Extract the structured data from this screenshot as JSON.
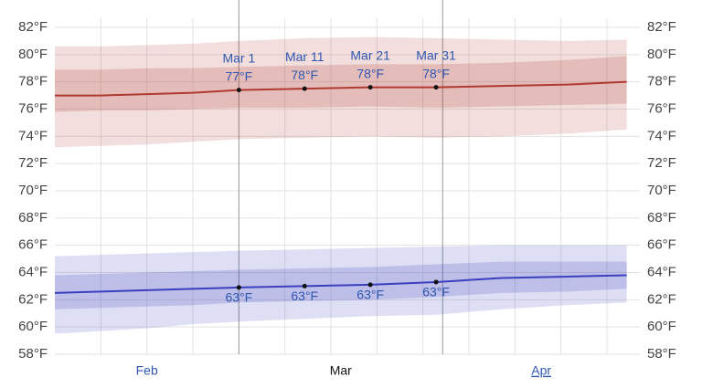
{
  "chart_data": {
    "type": "line",
    "months": [
      {
        "name": "Feb",
        "days": 28
      },
      {
        "name": "Mar",
        "days": 31
      },
      {
        "name": "Apr",
        "days": 30
      }
    ],
    "x": [
      "Feb 1",
      "Feb 8",
      "Feb 15",
      "Feb 22",
      "Mar 1",
      "Mar 11",
      "Mar 21",
      "Mar 31",
      "Apr 10",
      "Apr 20",
      "Apr 29"
    ],
    "series": [
      {
        "color": "#b03a30",
        "values": [
          77.0,
          77.0,
          77.1,
          77.2,
          77.4,
          77.5,
          77.6,
          77.6,
          77.7,
          77.8,
          78.0
        ],
        "value_labels": [
          null,
          null,
          null,
          null,
          "77°F",
          "78°F",
          "78°F",
          "78°F",
          null,
          null,
          null
        ],
        "p25": [
          75.8,
          75.9,
          75.9,
          76.0,
          76.1,
          76.1,
          76.2,
          76.1,
          76.2,
          76.3,
          76.4
        ],
        "p75": [
          78.9,
          78.9,
          79.0,
          79.0,
          79.1,
          79.2,
          79.3,
          79.3,
          79.4,
          79.6,
          79.9
        ],
        "p10": [
          73.2,
          73.3,
          73.4,
          73.6,
          73.8,
          73.9,
          74.0,
          73.9,
          74.0,
          74.2,
          74.5
        ],
        "p90": [
          80.6,
          80.6,
          80.7,
          80.8,
          81.0,
          81.2,
          81.3,
          81.2,
          81.1,
          81.0,
          81.1
        ]
      },
      {
        "color": "#3a3fc0",
        "values": [
          62.5,
          62.6,
          62.7,
          62.8,
          62.9,
          63.0,
          63.1,
          63.3,
          63.6,
          63.7,
          63.8
        ],
        "value_labels": [
          null,
          null,
          null,
          null,
          "63°F",
          "63°F",
          "63°F",
          "63°F",
          null,
          null,
          null
        ],
        "p25": [
          61.3,
          61.4,
          61.5,
          61.6,
          61.8,
          61.9,
          62.0,
          62.2,
          62.5,
          62.6,
          62.8
        ],
        "p75": [
          63.8,
          63.9,
          64.0,
          64.1,
          64.2,
          64.3,
          64.4,
          64.6,
          64.8,
          64.8,
          64.8
        ],
        "p10": [
          59.5,
          59.7,
          59.9,
          60.2,
          60.4,
          60.6,
          60.8,
          60.9,
          61.3,
          61.6,
          61.8
        ],
        "p90": [
          65.2,
          65.3,
          65.4,
          65.5,
          65.6,
          65.7,
          65.8,
          65.9,
          66.0,
          66.0,
          66.0
        ]
      }
    ],
    "ylim": [
      58,
      82
    ],
    "yticks": [
      {
        "value": 58,
        "label": "58°F"
      },
      {
        "value": 60,
        "label": "60°F"
      },
      {
        "value": 62,
        "label": "62°F"
      },
      {
        "value": 64,
        "label": "64°F"
      },
      {
        "value": 66,
        "label": "66°F"
      },
      {
        "value": 68,
        "label": "68°F"
      },
      {
        "value": 70,
        "label": "70°F"
      },
      {
        "value": 72,
        "label": "72°F"
      },
      {
        "value": 74,
        "label": "74°F"
      },
      {
        "value": 76,
        "label": "76°F"
      },
      {
        "value": 78,
        "label": "78°F"
      },
      {
        "value": 80,
        "label": "80°F"
      },
      {
        "value": 82,
        "label": "82°F"
      }
    ],
    "grid": true
  }
}
